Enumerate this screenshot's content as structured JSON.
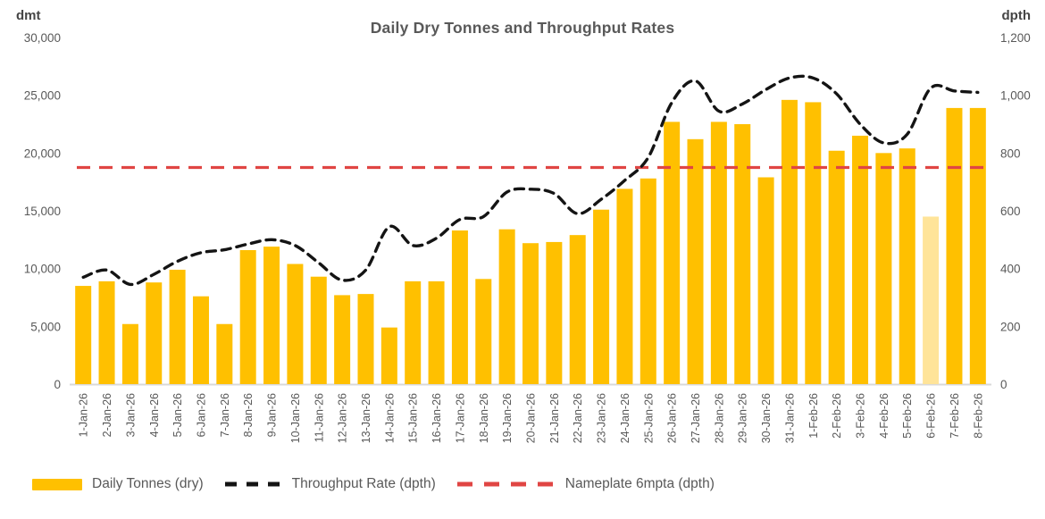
{
  "chart_data": {
    "type": "bar",
    "combo": "bar + smoothed dashed line + constant line",
    "title": "Daily Dry Tonnes and Throughput Rates",
    "grid": false,
    "legend_position": "bottom",
    "categories": [
      "1-Jan-26",
      "2-Jan-26",
      "3-Jan-26",
      "4-Jan-26",
      "5-Jan-26",
      "6-Jan-26",
      "7-Jan-26",
      "8-Jan-26",
      "9-Jan-26",
      "10-Jan-26",
      "11-Jan-26",
      "12-Jan-26",
      "13-Jan-26",
      "14-Jan-26",
      "15-Jan-26",
      "16-Jan-26",
      "17-Jan-26",
      "18-Jan-26",
      "19-Jan-26",
      "20-Jan-26",
      "21-Jan-26",
      "22-Jan-26",
      "23-Jan-26",
      "24-Jan-26",
      "25-Jan-26",
      "26-Jan-26",
      "27-Jan-26",
      "28-Jan-26",
      "29-Jan-26",
      "30-Jan-26",
      "31-Jan-26",
      "1-Feb-26",
      "2-Feb-26",
      "3-Feb-26",
      "4-Feb-26",
      "5-Feb-26",
      "6-Feb-26",
      "7-Feb-26",
      "8-Feb-26"
    ],
    "series": [
      {
        "name": "Daily Tonnes (dry)",
        "type": "bar",
        "axis": "left",
        "color": "#FFC000",
        "values": [
          8500,
          8900,
          5200,
          8800,
          9900,
          7600,
          5200,
          11600,
          11900,
          10400,
          9300,
          7700,
          7800,
          4900,
          8900,
          8900,
          13300,
          9100,
          13400,
          12200,
          12300,
          12900,
          15100,
          16900,
          17800,
          22700,
          21200,
          22700,
          22500,
          17900,
          24600,
          24400,
          20200,
          21500,
          20000,
          20400,
          14500,
          23900,
          23900
        ],
        "muted": {
          "category": "6-Feb-26",
          "index": 36,
          "color": "#FFE499"
        }
      },
      {
        "name": "Throughput Rate (dpth)",
        "type": "line",
        "axis": "right",
        "style": "dashed",
        "smooth": true,
        "color": "#141414",
        "values": [
          370,
          395,
          345,
          380,
          425,
          455,
          465,
          485,
          500,
          480,
          420,
          360,
          395,
          545,
          480,
          505,
          570,
          580,
          665,
          675,
          660,
          590,
          640,
          705,
          785,
          975,
          1050,
          945,
          970,
          1020,
          1060,
          1060,
          1005,
          900,
          835,
          865,
          1025,
          1015,
          1010
        ]
      },
      {
        "name": "Nameplate 6mpta (dpth)",
        "type": "constant-line",
        "axis": "right",
        "style": "dashed",
        "color": "#E04543",
        "value": 750
      }
    ],
    "left_axis": {
      "unit": "dmt",
      "min": 0,
      "max": 30000,
      "step": 5000,
      "ticks": [
        "0",
        "5,000",
        "10,000",
        "15,000",
        "20,000",
        "25,000",
        "30,000"
      ]
    },
    "right_axis": {
      "unit": "dpth",
      "min": 0,
      "max": 1200,
      "step": 200,
      "ticks": [
        "0",
        "200",
        "400",
        "600",
        "800",
        "1,000",
        "1,200"
      ]
    }
  }
}
